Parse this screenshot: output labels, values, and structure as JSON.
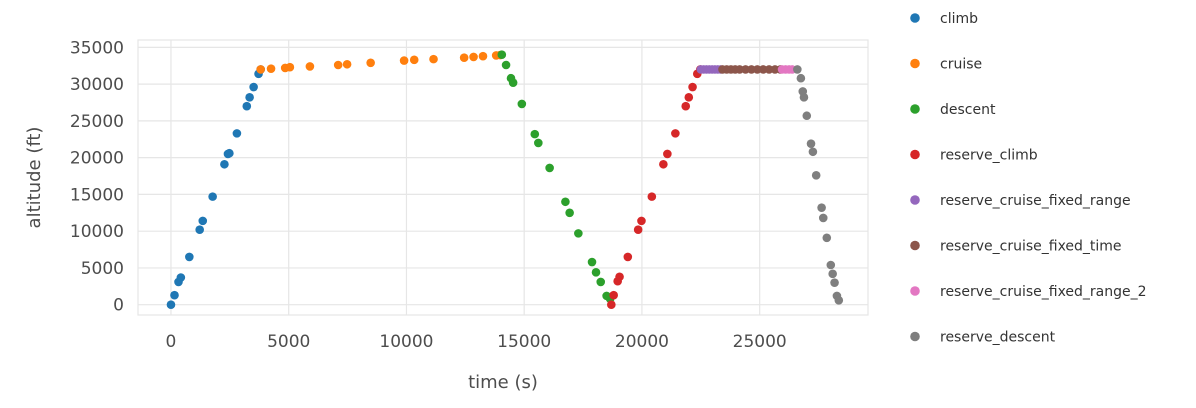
{
  "chart_data": {
    "type": "scatter",
    "title": "",
    "xlabel": "time (s)",
    "ylabel": "altitude (ft)",
    "xlim": [
      -1400,
      29600
    ],
    "ylim": [
      -1400,
      36000
    ],
    "xticks": [
      0,
      5000,
      10000,
      15000,
      20000,
      25000
    ],
    "yticks": [
      0,
      5000,
      10000,
      15000,
      20000,
      25000,
      30000,
      35000
    ],
    "grid": true,
    "legend_position": "right",
    "series": [
      {
        "name": "climb",
        "color": "#1f77b4",
        "points": [
          [
            0,
            0
          ],
          [
            150,
            1300
          ],
          [
            320,
            3100
          ],
          [
            420,
            3700
          ],
          [
            780,
            6500
          ],
          [
            1220,
            10200
          ],
          [
            1350,
            11400
          ],
          [
            1770,
            14700
          ],
          [
            2270,
            19100
          ],
          [
            2420,
            20500
          ],
          [
            2480,
            20600
          ],
          [
            2800,
            23300
          ],
          [
            3220,
            27000
          ],
          [
            3340,
            28200
          ],
          [
            3510,
            29600
          ],
          [
            3720,
            31400
          ],
          [
            3810,
            32000
          ]
        ]
      },
      {
        "name": "cruise",
        "color": "#ff7f0e",
        "points": [
          [
            3810,
            32000
          ],
          [
            4250,
            32100
          ],
          [
            4850,
            32200
          ],
          [
            5050,
            32300
          ],
          [
            5900,
            32400
          ],
          [
            7100,
            32600
          ],
          [
            7480,
            32700
          ],
          [
            8480,
            32900
          ],
          [
            9900,
            33200
          ],
          [
            10330,
            33300
          ],
          [
            11150,
            33400
          ],
          [
            12450,
            33600
          ],
          [
            12850,
            33700
          ],
          [
            13250,
            33800
          ],
          [
            13810,
            33900
          ],
          [
            13980,
            33950
          ]
        ]
      },
      {
        "name": "descent",
        "color": "#2ca02c",
        "points": [
          [
            14050,
            34000
          ],
          [
            14230,
            32600
          ],
          [
            14440,
            30800
          ],
          [
            14530,
            30200
          ],
          [
            14900,
            27300
          ],
          [
            15450,
            23200
          ],
          [
            15600,
            22000
          ],
          [
            16080,
            18600
          ],
          [
            16750,
            14000
          ],
          [
            16930,
            12500
          ],
          [
            17300,
            9700
          ],
          [
            17880,
            5800
          ],
          [
            18050,
            4400
          ],
          [
            18250,
            3100
          ],
          [
            18500,
            1200
          ],
          [
            18650,
            800
          ]
        ]
      },
      {
        "name": "reserve_climb",
        "color": "#d62728",
        "points": [
          [
            18700,
            0
          ],
          [
            18800,
            1300
          ],
          [
            18970,
            3200
          ],
          [
            19050,
            3800
          ],
          [
            19400,
            6500
          ],
          [
            19840,
            10200
          ],
          [
            19980,
            11400
          ],
          [
            20420,
            14700
          ],
          [
            20910,
            19100
          ],
          [
            21080,
            20500
          ],
          [
            21420,
            23300
          ],
          [
            21860,
            27000
          ],
          [
            21990,
            28200
          ],
          [
            22150,
            29600
          ],
          [
            22350,
            31400
          ],
          [
            22480,
            32000
          ]
        ]
      },
      {
        "name": "reserve_cruise_fixed_range",
        "color": "#9467bd",
        "points": [
          [
            22500,
            32000
          ],
          [
            22620,
            32000
          ],
          [
            22740,
            32000
          ],
          [
            22860,
            32000
          ],
          [
            22980,
            32000
          ],
          [
            23100,
            32000
          ],
          [
            23220,
            32000
          ],
          [
            23340,
            32000
          ]
        ]
      },
      {
        "name": "reserve_cruise_fixed_time",
        "color": "#8c564b",
        "points": [
          [
            23420,
            32000
          ],
          [
            23600,
            32000
          ],
          [
            23780,
            32000
          ],
          [
            23960,
            32000
          ],
          [
            24150,
            32000
          ],
          [
            24400,
            32000
          ],
          [
            24650,
            32000
          ],
          [
            24900,
            32000
          ],
          [
            25150,
            32000
          ],
          [
            25400,
            32000
          ],
          [
            25650,
            32000
          ],
          [
            25880,
            32000
          ]
        ]
      },
      {
        "name": "reserve_cruise_fixed_range_2",
        "color": "#e377c2",
        "points": [
          [
            25950,
            32000
          ],
          [
            26100,
            32000
          ],
          [
            26250,
            32000
          ],
          [
            26380,
            32000
          ]
        ]
      },
      {
        "name": "reserve_descent",
        "color": "#7f7f7f",
        "points": [
          [
            26600,
            32000
          ],
          [
            26750,
            30800
          ],
          [
            26830,
            29000
          ],
          [
            26880,
            28200
          ],
          [
            27000,
            25700
          ],
          [
            27180,
            21900
          ],
          [
            27260,
            20800
          ],
          [
            27400,
            17600
          ],
          [
            27630,
            13200
          ],
          [
            27700,
            11800
          ],
          [
            27850,
            9100
          ],
          [
            28020,
            5400
          ],
          [
            28100,
            4200
          ],
          [
            28180,
            3000
          ],
          [
            28280,
            1200
          ],
          [
            28360,
            600
          ]
        ]
      }
    ]
  }
}
